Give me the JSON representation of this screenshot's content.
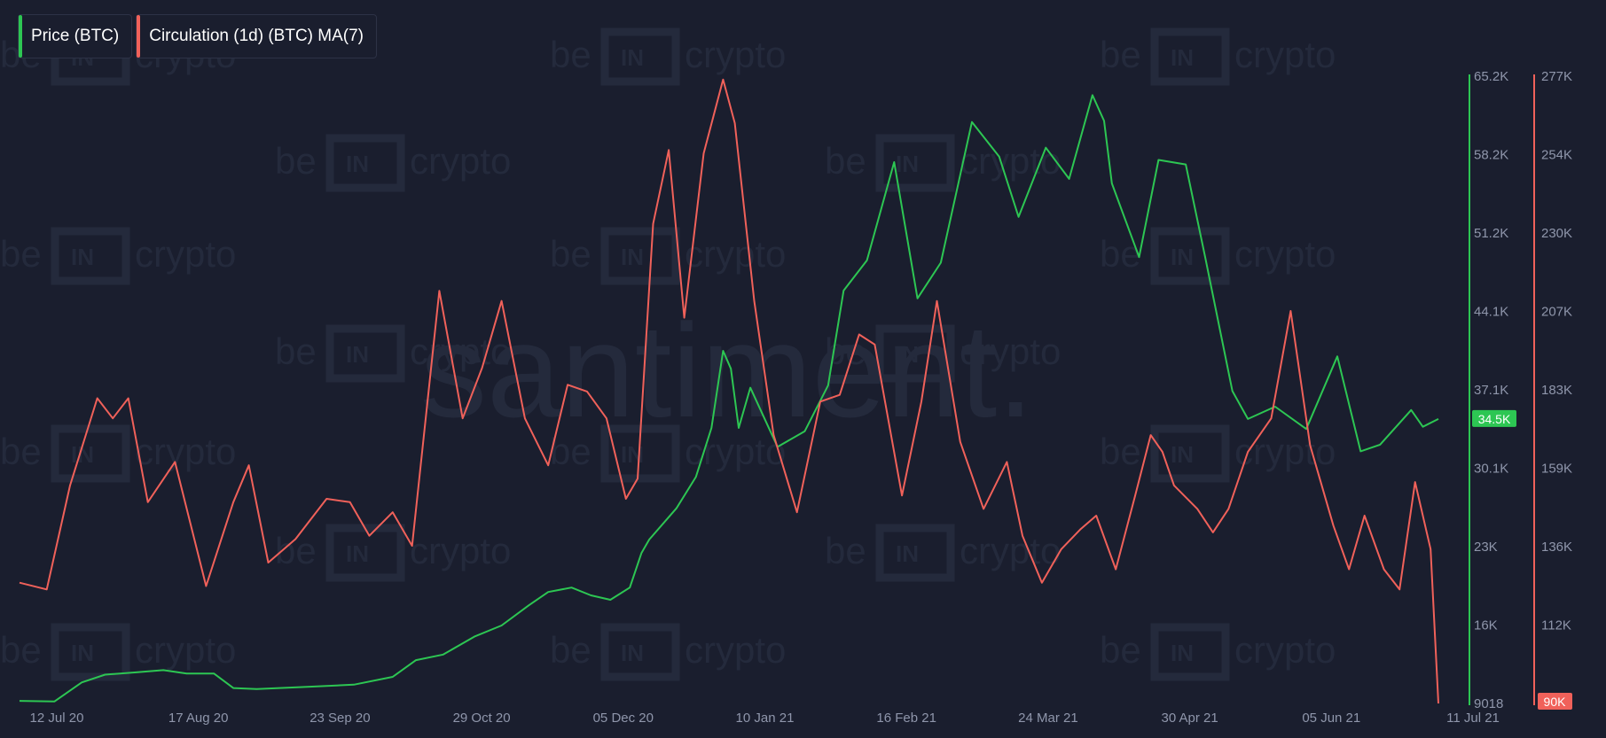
{
  "colors": {
    "background": "#1a1e2e",
    "price": "#2dc653",
    "circulation": "#f0615a",
    "tick": "#8f96ab"
  },
  "legend": [
    {
      "label": "Price (BTC)",
      "color": "#2dc653"
    },
    {
      "label": "Circulation (1d) (BTC) MA(7)",
      "color": "#f0615a"
    }
  ],
  "watermark": {
    "brand_left": "be",
    "brand_mid": "IN",
    "brand_right": "crypto",
    "center": "santiment."
  },
  "chart_data": {
    "type": "line",
    "x_labels": [
      "12 Jul 20",
      "17 Aug 20",
      "23 Sep 20",
      "29 Oct 20",
      "05 Dec 20",
      "10 Jan 21",
      "16 Feb 21",
      "24 Mar 21",
      "30 Apr 21",
      "05 Jun 21",
      "11 Jul 21"
    ],
    "x_range": [
      "2020-07-11",
      "2021-07-11"
    ],
    "left_axis": {
      "name": "Price (BTC)",
      "ticks": [
        "65.2K",
        "58.2K",
        "51.2K",
        "44.1K",
        "37.1K",
        "30.1K",
        "23K",
        "16K",
        "9018"
      ],
      "min": 9018,
      "max": 65200,
      "current": "34.5K"
    },
    "right_axis": {
      "name": "Circulation (1d) (BTC) MA(7)",
      "ticks": [
        "277K",
        "254K",
        "230K",
        "207K",
        "183K",
        "159K",
        "136K",
        "112K"
      ],
      "min": 90000,
      "max": 277000,
      "current": "90K"
    },
    "series": [
      {
        "name": "Price (BTC)",
        "color": "#2dc653",
        "axis": "left",
        "points": [
          [
            "2020-07-11",
            9250
          ],
          [
            "2020-07-20",
            9200
          ],
          [
            "2020-07-27",
            10900
          ],
          [
            "2020-08-02",
            11600
          ],
          [
            "2020-08-10",
            11800
          ],
          [
            "2020-08-17",
            12000
          ],
          [
            "2020-08-23",
            11700
          ],
          [
            "2020-08-30",
            11700
          ],
          [
            "2020-09-04",
            10400
          ],
          [
            "2020-09-10",
            10300
          ],
          [
            "2020-09-23",
            10500
          ],
          [
            "2020-10-05",
            10700
          ],
          [
            "2020-10-15",
            11400
          ],
          [
            "2020-10-21",
            12900
          ],
          [
            "2020-10-28",
            13400
          ],
          [
            "2020-11-05",
            15000
          ],
          [
            "2020-11-12",
            16000
          ],
          [
            "2020-11-19",
            17800
          ],
          [
            "2020-11-24",
            19000
          ],
          [
            "2020-11-30",
            19400
          ],
          [
            "2020-12-05",
            18700
          ],
          [
            "2020-12-10",
            18300
          ],
          [
            "2020-12-15",
            19400
          ],
          [
            "2020-12-18",
            22500
          ],
          [
            "2020-12-20",
            23700
          ],
          [
            "2020-12-27",
            26500
          ],
          [
            "2021-01-01",
            29300
          ],
          [
            "2021-01-05",
            33700
          ],
          [
            "2021-01-08",
            40600
          ],
          [
            "2021-01-10",
            39000
          ],
          [
            "2021-01-12",
            33700
          ],
          [
            "2021-01-15",
            37300
          ],
          [
            "2021-01-22",
            32000
          ],
          [
            "2021-01-29",
            33400
          ],
          [
            "2021-02-04",
            37500
          ],
          [
            "2021-02-08",
            46000
          ],
          [
            "2021-02-14",
            48700
          ],
          [
            "2021-02-21",
            57500
          ],
          [
            "2021-02-27",
            45300
          ],
          [
            "2021-03-05",
            48500
          ],
          [
            "2021-03-13",
            61100
          ],
          [
            "2021-03-20",
            58000
          ],
          [
            "2021-03-25",
            52600
          ],
          [
            "2021-04-01",
            58800
          ],
          [
            "2021-04-07",
            56000
          ],
          [
            "2021-04-13",
            63500
          ],
          [
            "2021-04-16",
            61200
          ],
          [
            "2021-04-18",
            55600
          ],
          [
            "2021-04-25",
            49000
          ],
          [
            "2021-04-30",
            57700
          ],
          [
            "2021-05-07",
            57300
          ],
          [
            "2021-05-12",
            49000
          ],
          [
            "2021-05-19",
            37000
          ],
          [
            "2021-05-23",
            34500
          ],
          [
            "2021-05-30",
            35600
          ],
          [
            "2021-06-07",
            33600
          ],
          [
            "2021-06-15",
            40100
          ],
          [
            "2021-06-21",
            31600
          ],
          [
            "2021-06-26",
            32200
          ],
          [
            "2021-07-04",
            35300
          ],
          [
            "2021-07-07",
            33800
          ],
          [
            "2021-07-11",
            34500
          ]
        ]
      },
      {
        "name": "Circulation (1d) (BTC) MA(7)",
        "color": "#f0615a",
        "axis": "right",
        "points": [
          [
            "2020-07-11",
            126000
          ],
          [
            "2020-07-18",
            124000
          ],
          [
            "2020-07-24",
            155000
          ],
          [
            "2020-07-31",
            181000
          ],
          [
            "2020-08-04",
            175000
          ],
          [
            "2020-08-08",
            181000
          ],
          [
            "2020-08-13",
            150000
          ],
          [
            "2020-08-20",
            162000
          ],
          [
            "2020-08-28",
            125000
          ],
          [
            "2020-09-04",
            150000
          ],
          [
            "2020-09-08",
            161000
          ],
          [
            "2020-09-13",
            132000
          ],
          [
            "2020-09-20",
            139000
          ],
          [
            "2020-09-28",
            151000
          ],
          [
            "2020-10-04",
            150000
          ],
          [
            "2020-10-09",
            140000
          ],
          [
            "2020-10-15",
            147000
          ],
          [
            "2020-10-20",
            137000
          ],
          [
            "2020-10-27",
            213000
          ],
          [
            "2020-11-02",
            175000
          ],
          [
            "2020-11-07",
            190000
          ],
          [
            "2020-11-12",
            210000
          ],
          [
            "2020-11-18",
            175000
          ],
          [
            "2020-11-24",
            161000
          ],
          [
            "2020-11-29",
            185000
          ],
          [
            "2020-12-04",
            183000
          ],
          [
            "2020-12-09",
            175000
          ],
          [
            "2020-12-14",
            151000
          ],
          [
            "2020-12-17",
            157000
          ],
          [
            "2020-12-21",
            233000
          ],
          [
            "2020-12-25",
            255000
          ],
          [
            "2020-12-29",
            205000
          ],
          [
            "2021-01-03",
            254000
          ],
          [
            "2021-01-08",
            276000
          ],
          [
            "2021-01-11",
            263000
          ],
          [
            "2021-01-16",
            210000
          ],
          [
            "2021-01-21",
            170000
          ],
          [
            "2021-01-27",
            147000
          ],
          [
            "2021-02-02",
            180000
          ],
          [
            "2021-02-07",
            182000
          ],
          [
            "2021-02-12",
            200000
          ],
          [
            "2021-02-16",
            197000
          ],
          [
            "2021-02-23",
            152000
          ],
          [
            "2021-02-28",
            180000
          ],
          [
            "2021-03-04",
            210000
          ],
          [
            "2021-03-10",
            168000
          ],
          [
            "2021-03-16",
            148000
          ],
          [
            "2021-03-22",
            162000
          ],
          [
            "2021-03-26",
            140000
          ],
          [
            "2021-03-31",
            126000
          ],
          [
            "2021-04-05",
            136000
          ],
          [
            "2021-04-10",
            142000
          ],
          [
            "2021-04-14",
            146000
          ],
          [
            "2021-04-19",
            130000
          ],
          [
            "2021-04-24",
            152000
          ],
          [
            "2021-04-28",
            170000
          ],
          [
            "2021-05-01",
            165000
          ],
          [
            "2021-05-04",
            155000
          ],
          [
            "2021-05-10",
            148000
          ],
          [
            "2021-05-14",
            141000
          ],
          [
            "2021-05-18",
            148000
          ],
          [
            "2021-05-23",
            165000
          ],
          [
            "2021-05-29",
            175000
          ],
          [
            "2021-06-03",
            207000
          ],
          [
            "2021-06-08",
            167000
          ],
          [
            "2021-06-14",
            143000
          ],
          [
            "2021-06-18",
            130000
          ],
          [
            "2021-06-22",
            146000
          ],
          [
            "2021-06-27",
            130000
          ],
          [
            "2021-07-01",
            124000
          ],
          [
            "2021-07-05",
            156000
          ],
          [
            "2021-07-09",
            136000
          ],
          [
            "2021-07-11",
            90000
          ]
        ]
      }
    ]
  }
}
